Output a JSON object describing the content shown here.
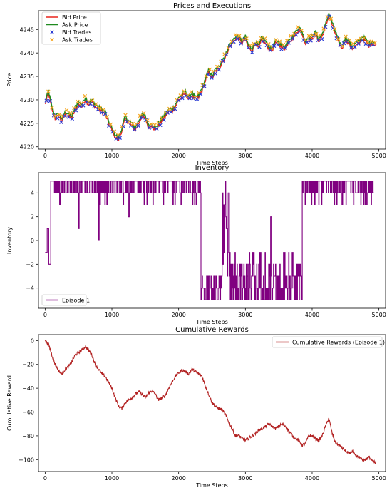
{
  "chart_data": [
    {
      "type": "line",
      "title": "Prices and Executions",
      "xlabel": "Time Steps",
      "ylabel": "Price",
      "xlim": [
        -100,
        5100
      ],
      "ylim": [
        4219.5,
        4249
      ],
      "xticks": [
        0,
        1000,
        2000,
        3000,
        4000,
        5000
      ],
      "yticks": [
        4220,
        4225,
        4230,
        4235,
        4240,
        4245
      ],
      "grid": false,
      "legend_position": "top-left",
      "noise": 0.8,
      "trade_marker_spacing": 55,
      "series": [
        {
          "name": "Bid Price",
          "kind": "line",
          "color": "#e8231b",
          "x": [
            0,
            50,
            100,
            150,
            200,
            250,
            300,
            350,
            400,
            450,
            500,
            550,
            600,
            650,
            700,
            750,
            800,
            850,
            900,
            950,
            1000,
            1050,
            1100,
            1150,
            1200,
            1250,
            1300,
            1350,
            1400,
            1450,
            1500,
            1550,
            1600,
            1650,
            1700,
            1750,
            1800,
            1850,
            1900,
            1950,
            2000,
            2050,
            2100,
            2150,
            2200,
            2250,
            2300,
            2350,
            2400,
            2450,
            2500,
            2550,
            2600,
            2650,
            2700,
            2750,
            2800,
            2850,
            2900,
            2950,
            3000,
            3050,
            3100,
            3150,
            3200,
            3250,
            3300,
            3350,
            3400,
            3450,
            3500,
            3550,
            3600,
            3650,
            3700,
            3750,
            3800,
            3850,
            3900,
            3950,
            4000,
            4050,
            4100,
            4150,
            4200,
            4250,
            4300,
            4350,
            4400,
            4450,
            4500,
            4550,
            4600,
            4650,
            4700,
            4750,
            4800,
            4850,
            4900,
            4950
          ],
          "y": [
            4229,
            4231.5,
            4228,
            4226,
            4226.5,
            4225.5,
            4227,
            4226.5,
            4226,
            4228,
            4229,
            4228.5,
            4230,
            4229,
            4229.5,
            4228.5,
            4228,
            4227.5,
            4227,
            4225,
            4223.5,
            4222,
            4221.5,
            4223.5,
            4226,
            4225,
            4224.5,
            4223.5,
            4225,
            4226.5,
            4226,
            4224,
            4224.5,
            4223.5,
            4224.5,
            4225.5,
            4226.5,
            4227.5,
            4227.5,
            4228.5,
            4230,
            4230.5,
            4231.5,
            4230,
            4231,
            4230,
            4230.5,
            4232,
            4234,
            4236,
            4234.5,
            4236,
            4236.5,
            4238,
            4239,
            4241,
            4242,
            4243,
            4243,
            4242,
            4243,
            4241,
            4240.5,
            4242,
            4241,
            4243,
            4242,
            4241,
            4240.5,
            4242,
            4242,
            4241,
            4241,
            4242.5,
            4243,
            4244,
            4245,
            4244,
            4242,
            4243,
            4243,
            4244,
            4242.5,
            4243.5,
            4245.5,
            4248,
            4246,
            4244,
            4242,
            4241,
            4243,
            4242,
            4241,
            4241.5,
            4242,
            4243,
            4242.5,
            4241.5,
            4242,
            4241.5
          ]
        },
        {
          "name": "Ask Price",
          "kind": "line",
          "color": "#1f8a1f",
          "offset": 0.5
        },
        {
          "name": "Bid Trades",
          "kind": "marker",
          "marker": "x",
          "color": "#2a3ad4"
        },
        {
          "name": "Ask Trades",
          "kind": "marker",
          "marker": "x",
          "color": "#f5a41b"
        }
      ]
    },
    {
      "type": "line",
      "title": "Inventory",
      "xlabel": "Time Steps",
      "ylabel": "Inventory",
      "xlim": [
        -100,
        5100
      ],
      "ylim": [
        -5.7,
        5.7
      ],
      "xticks": [
        0,
        1000,
        2000,
        3000,
        4000,
        5000
      ],
      "yticks": [
        -4,
        -2,
        0,
        2,
        4
      ],
      "grid": false,
      "legend_position": "bottom-left",
      "series": [
        {
          "name": "Episode 1",
          "color": "#800080",
          "regimes": [
            {
              "from": 0,
              "to": 30,
              "value": -1
            },
            {
              "from": 30,
              "to": 50,
              "value": 1
            },
            {
              "from": 50,
              "to": 80,
              "value": -2
            },
            {
              "from": 80,
              "to": 2330,
              "value": 5
            },
            {
              "from": 2330,
              "to": 2650,
              "value": -5
            },
            {
              "from": 2650,
              "to": 2760,
              "value": 3
            },
            {
              "from": 2760,
              "to": 3850,
              "value": -4
            },
            {
              "from": 3850,
              "to": 4930,
              "value": 5
            }
          ],
          "dips": [
            {
              "x": 500,
              "value": 1
            },
            {
              "x": 800,
              "value": 0
            },
            {
              "x": 1250,
              "value": 2
            },
            {
              "x": 2450,
              "value": -3
            },
            {
              "x": 2700,
              "value": 5
            },
            {
              "x": 3380,
              "value": 2
            },
            {
              "x": 4450,
              "value": 3
            }
          ]
        }
      ]
    },
    {
      "type": "line",
      "title": "Cumulative Rewards",
      "xlabel": "Time Steps",
      "ylabel": "Cumulative Reward",
      "xlim": [
        -100,
        5100
      ],
      "ylim": [
        -110,
        5
      ],
      "xticks": [
        0,
        1000,
        2000,
        3000,
        4000,
        5000
      ],
      "yticks": [
        -100,
        -80,
        -60,
        -40,
        -20,
        0
      ],
      "grid": false,
      "legend_position": "top-right",
      "noise": 2.5,
      "series": [
        {
          "name": "Cumulative Rewards (Episode 1)",
          "color": "#b22222",
          "x": [
            0,
            50,
            100,
            150,
            200,
            250,
            300,
            350,
            400,
            450,
            500,
            550,
            600,
            650,
            700,
            750,
            800,
            850,
            900,
            950,
            1000,
            1050,
            1100,
            1150,
            1200,
            1250,
            1300,
            1350,
            1400,
            1450,
            1500,
            1550,
            1600,
            1650,
            1700,
            1750,
            1800,
            1850,
            1900,
            1950,
            2000,
            2050,
            2100,
            2150,
            2200,
            2250,
            2300,
            2350,
            2400,
            2450,
            2500,
            2550,
            2600,
            2650,
            2700,
            2750,
            2800,
            2850,
            2900,
            2950,
            3000,
            3050,
            3100,
            3150,
            3200,
            3250,
            3300,
            3350,
            3400,
            3450,
            3500,
            3550,
            3600,
            3650,
            3700,
            3750,
            3800,
            3850,
            3900,
            3950,
            4000,
            4050,
            4100,
            4150,
            4200,
            4250,
            4300,
            4350,
            4400,
            4450,
            4500,
            4550,
            4600,
            4650,
            4700,
            4750,
            4800,
            4850,
            4900,
            4950
          ],
          "y": [
            0,
            -3,
            -12,
            -20,
            -25,
            -28,
            -24,
            -22,
            -18,
            -12,
            -10,
            -8,
            -5,
            -8,
            -12,
            -20,
            -24,
            -28,
            -30,
            -35,
            -40,
            -48,
            -55,
            -57,
            -52,
            -50,
            -48,
            -45,
            -43,
            -45,
            -48,
            -44,
            -42,
            -45,
            -50,
            -48,
            -46,
            -40,
            -35,
            -30,
            -27,
            -25,
            -26,
            -28,
            -24,
            -26,
            -28,
            -30,
            -38,
            -45,
            -52,
            -55,
            -57,
            -58,
            -62,
            -68,
            -74,
            -80,
            -80,
            -82,
            -84,
            -82,
            -80,
            -78,
            -75,
            -74,
            -72,
            -70,
            -72,
            -74,
            -72,
            -70,
            -72,
            -76,
            -80,
            -82,
            -84,
            -88,
            -86,
            -80,
            -80,
            -82,
            -84,
            -80,
            -72,
            -65,
            -78,
            -86,
            -88,
            -90,
            -93,
            -95,
            -93,
            -97,
            -98,
            -100,
            -100,
            -98,
            -100,
            -103
          ]
        }
      ]
    }
  ]
}
